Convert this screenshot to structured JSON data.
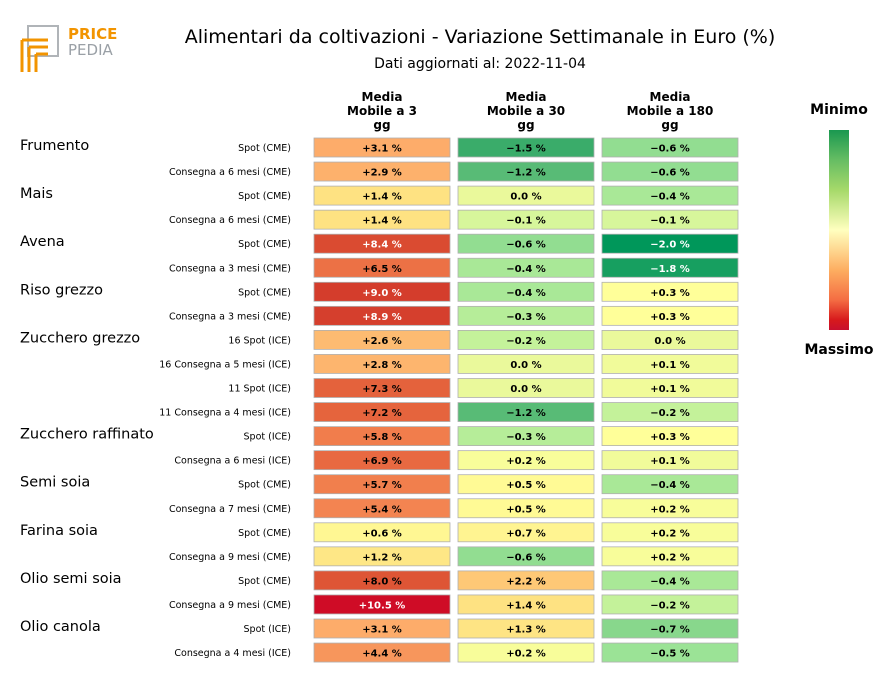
{
  "logo": {
    "line1": "PRICE",
    "line2": "PEDIA"
  },
  "title": "Alimentari da coltivazioni - Variazione Settimanale in Euro (%)",
  "subtitle": "Dati aggiornati al: 2022-11-04",
  "legend": {
    "min_label": "Minimo",
    "max_label": "Massimo"
  },
  "chart_data": {
    "type": "heatmap",
    "columns": [
      "Media\nMobile a 3\ngg",
      "Media\nMobile a 30\ngg",
      "Media\nMobile a 180\ngg"
    ],
    "groups": [
      {
        "name": "Frumento",
        "rows": [
          {
            "label": "Spot (CME)",
            "values": [
              "+3.1 %",
              "−1.5 %",
              "−0.6 %"
            ]
          },
          {
            "label": "Consegna a 6 mesi (CME)",
            "values": [
              "+2.9 %",
              "−1.2 %",
              "−0.6 %"
            ]
          }
        ]
      },
      {
        "name": "Mais",
        "rows": [
          {
            "label": "Spot (CME)",
            "values": [
              "+1.4 %",
              "0.0 %",
              "−0.4 %"
            ]
          },
          {
            "label": "Consegna a 6 mesi (CME)",
            "values": [
              "+1.4 %",
              "−0.1 %",
              "−0.1 %"
            ]
          }
        ]
      },
      {
        "name": "Avena",
        "rows": [
          {
            "label": "Spot (CME)",
            "values": [
              "+8.4 %",
              "−0.6 %",
              "−2.0 %"
            ]
          },
          {
            "label": "Consegna a 3 mesi (CME)",
            "values": [
              "+6.5 %",
              "−0.4 %",
              "−1.8 %"
            ]
          }
        ]
      },
      {
        "name": "Riso grezzo",
        "rows": [
          {
            "label": "Spot (CME)",
            "values": [
              "+9.0 %",
              "−0.4 %",
              "+0.3 %"
            ]
          },
          {
            "label": "Consegna a 3 mesi (CME)",
            "values": [
              "+8.9 %",
              "−0.3 %",
              "+0.3 %"
            ]
          }
        ]
      },
      {
        "name": "Zucchero grezzo",
        "rows": [
          {
            "label": "16 Spot (ICE)",
            "values": [
              "+2.6 %",
              "−0.2 %",
              "0.0 %"
            ]
          },
          {
            "label": "16 Consegna a 5 mesi (ICE)",
            "values": [
              "+2.8 %",
              "0.0 %",
              "+0.1 %"
            ]
          },
          {
            "label": "11 Spot (ICE)",
            "values": [
              "+7.3 %",
              "0.0 %",
              "+0.1 %"
            ]
          },
          {
            "label": "11 Consegna a 4 mesi (ICE)",
            "values": [
              "+7.2 %",
              "−1.2 %",
              "−0.2 %"
            ]
          }
        ]
      },
      {
        "name": "Zucchero raffinato",
        "rows": [
          {
            "label": "Spot (ICE)",
            "values": [
              "+5.8 %",
              "−0.3 %",
              "+0.3 %"
            ]
          },
          {
            "label": "Consegna a 6 mesi (ICE)",
            "values": [
              "+6.9 %",
              "+0.2 %",
              "+0.1 %"
            ]
          }
        ]
      },
      {
        "name": "Semi soia",
        "rows": [
          {
            "label": "Spot (CME)",
            "values": [
              "+5.7 %",
              "+0.5 %",
              "−0.4 %"
            ]
          },
          {
            "label": "Consegna a 7 mesi (CME)",
            "values": [
              "+5.4 %",
              "+0.5 %",
              "+0.2 %"
            ]
          }
        ]
      },
      {
        "name": "Farina soia",
        "rows": [
          {
            "label": "Spot (CME)",
            "values": [
              "+0.6 %",
              "+0.7 %",
              "+0.2 %"
            ]
          },
          {
            "label": "Consegna a 9 mesi (CME)",
            "values": [
              "+1.2 %",
              "−0.6 %",
              "+0.2 %"
            ]
          }
        ]
      },
      {
        "name": "Olio semi soia",
        "rows": [
          {
            "label": "Spot (CME)",
            "values": [
              "+8.0 %",
              "+2.2 %",
              "−0.4 %"
            ]
          },
          {
            "label": "Consegna a 9 mesi (CME)",
            "values": [
              "+10.5 %",
              "+1.4 %",
              "−0.2 %"
            ]
          }
        ]
      },
      {
        "name": "Olio canola",
        "rows": [
          {
            "label": "Spot (ICE)",
            "values": [
              "+3.1 %",
              "+1.3 %",
              "−0.7 %"
            ]
          },
          {
            "label": "Consegna a 4 mesi (ICE)",
            "values": [
              "+4.4 %",
              "+0.2 %",
              "−0.5 %"
            ]
          }
        ]
      }
    ]
  }
}
